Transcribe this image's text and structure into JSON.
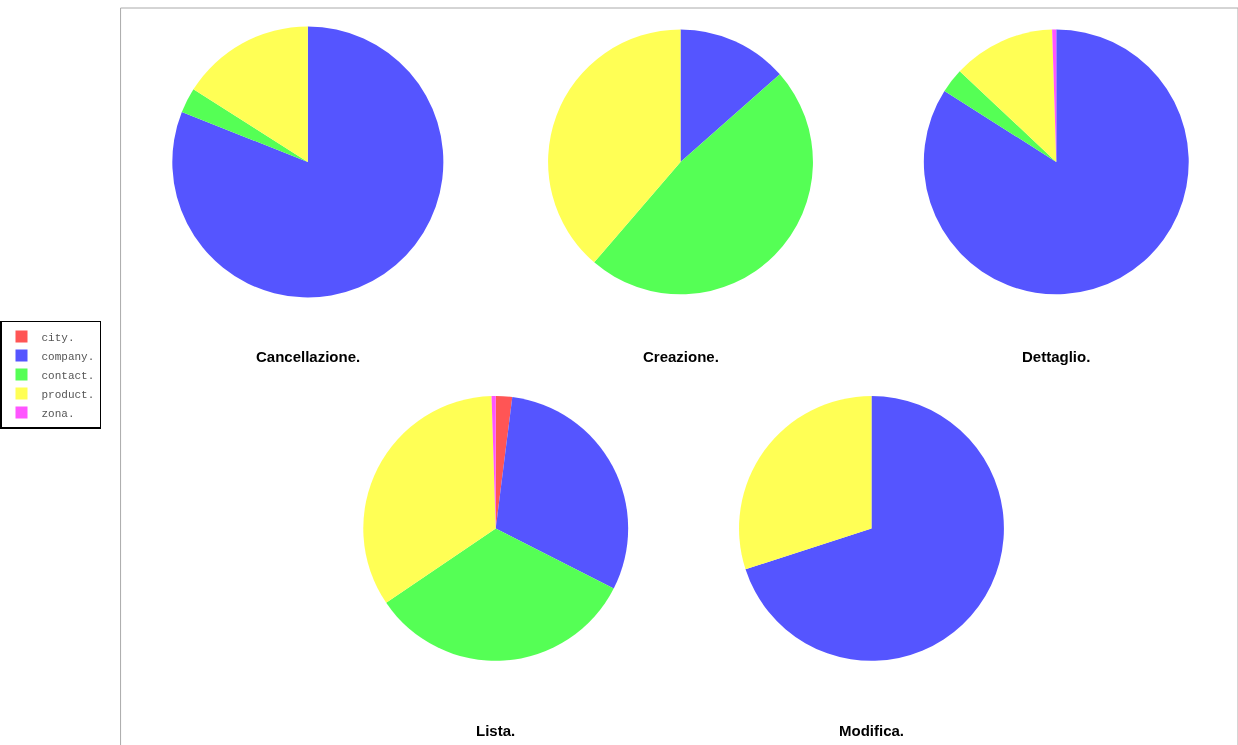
{
  "chart_data": {
    "type": "pie",
    "categories": [
      "city.",
      "company.",
      "contact.",
      "product.",
      "zona."
    ],
    "colors": [
      "#ff5555",
      "#5555ff",
      "#55ff55",
      "#ffff55",
      "#ff55ff"
    ],
    "legend": "left",
    "series": [
      {
        "name": "Cancellazione.",
        "values": [
          0,
          81,
          3,
          16,
          0
        ]
      },
      {
        "name": "Creazione.",
        "values": [
          0,
          13.5,
          47.8,
          38.7,
          0
        ]
      },
      {
        "name": "Dettaglio.",
        "values": [
          0,
          84,
          3,
          12.5,
          0.5
        ]
      },
      {
        "name": "Lista.",
        "values": [
          2,
          30.5,
          33,
          34,
          0.5
        ]
      },
      {
        "name": "Modifica.",
        "values": [
          0,
          70,
          0,
          30,
          0
        ]
      }
    ]
  }
}
